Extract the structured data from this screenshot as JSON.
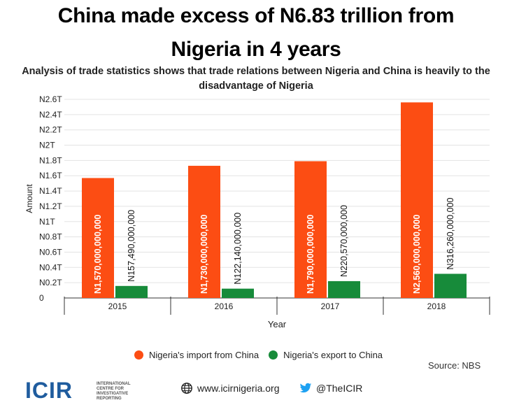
{
  "header": {
    "title_line1": "China made excess of N6.83 trillion from",
    "title_line2": "Nigeria in 4 years",
    "subtitle": "Analysis of trade statistics shows that trade relations between Nigeria and China is heavily to the disadvantage of Nigeria"
  },
  "chart_data": {
    "type": "bar",
    "title": "China made excess of N6.83 trillion from Nigeria in 4 years",
    "xlabel": "Year",
    "ylabel": "Amount",
    "categories": [
      "2015",
      "2016",
      "2017",
      "2018"
    ],
    "ylim": [
      0,
      2600000000000
    ],
    "yticks": [
      0,
      200000000000,
      400000000000,
      600000000000,
      800000000000,
      1000000000000,
      1200000000000,
      1400000000000,
      1600000000000,
      1800000000000,
      2000000000000,
      2200000000000,
      2400000000000,
      2600000000000
    ],
    "ytick_labels": [
      "0",
      "N0.2T",
      "N0.4T",
      "N0.6T",
      "N0.8T",
      "N1T",
      "N1.2T",
      "N1.4T",
      "N1.6T",
      "N1.8T",
      "N2T",
      "N2.2T",
      "N2.4T",
      "N2.6T"
    ],
    "grid": true,
    "series": [
      {
        "name": "Nigeria's import from China",
        "color": "#fc4d13",
        "values": [
          1570000000000,
          1730000000000,
          1790000000000,
          2560000000000
        ],
        "labels": [
          "N1,570,000,000,000",
          "N1,730,000,000,000",
          "N1,790,000,000,000",
          "N2,560,000,000,000"
        ]
      },
      {
        "name": "Nigeria's export to China",
        "color": "#178b3a",
        "values": [
          157490000000,
          122140000000,
          220570000000,
          316260000000
        ],
        "labels": [
          "N157,490,000,000",
          "N122,140,000,000",
          "N220,570,000,000",
          "N316,260,000,000"
        ]
      }
    ]
  },
  "source": "Source: NBS",
  "footer": {
    "logo": "ICIR",
    "logo_sub": "INTERNATIONAL CENTRE FOR INVESTIGATIVE REPORTING",
    "website": "www.icirnigeria.org",
    "twitter": "@TheICIR",
    "website_icon": "globe-icon",
    "twitter_icon": "twitter-bird-icon"
  }
}
